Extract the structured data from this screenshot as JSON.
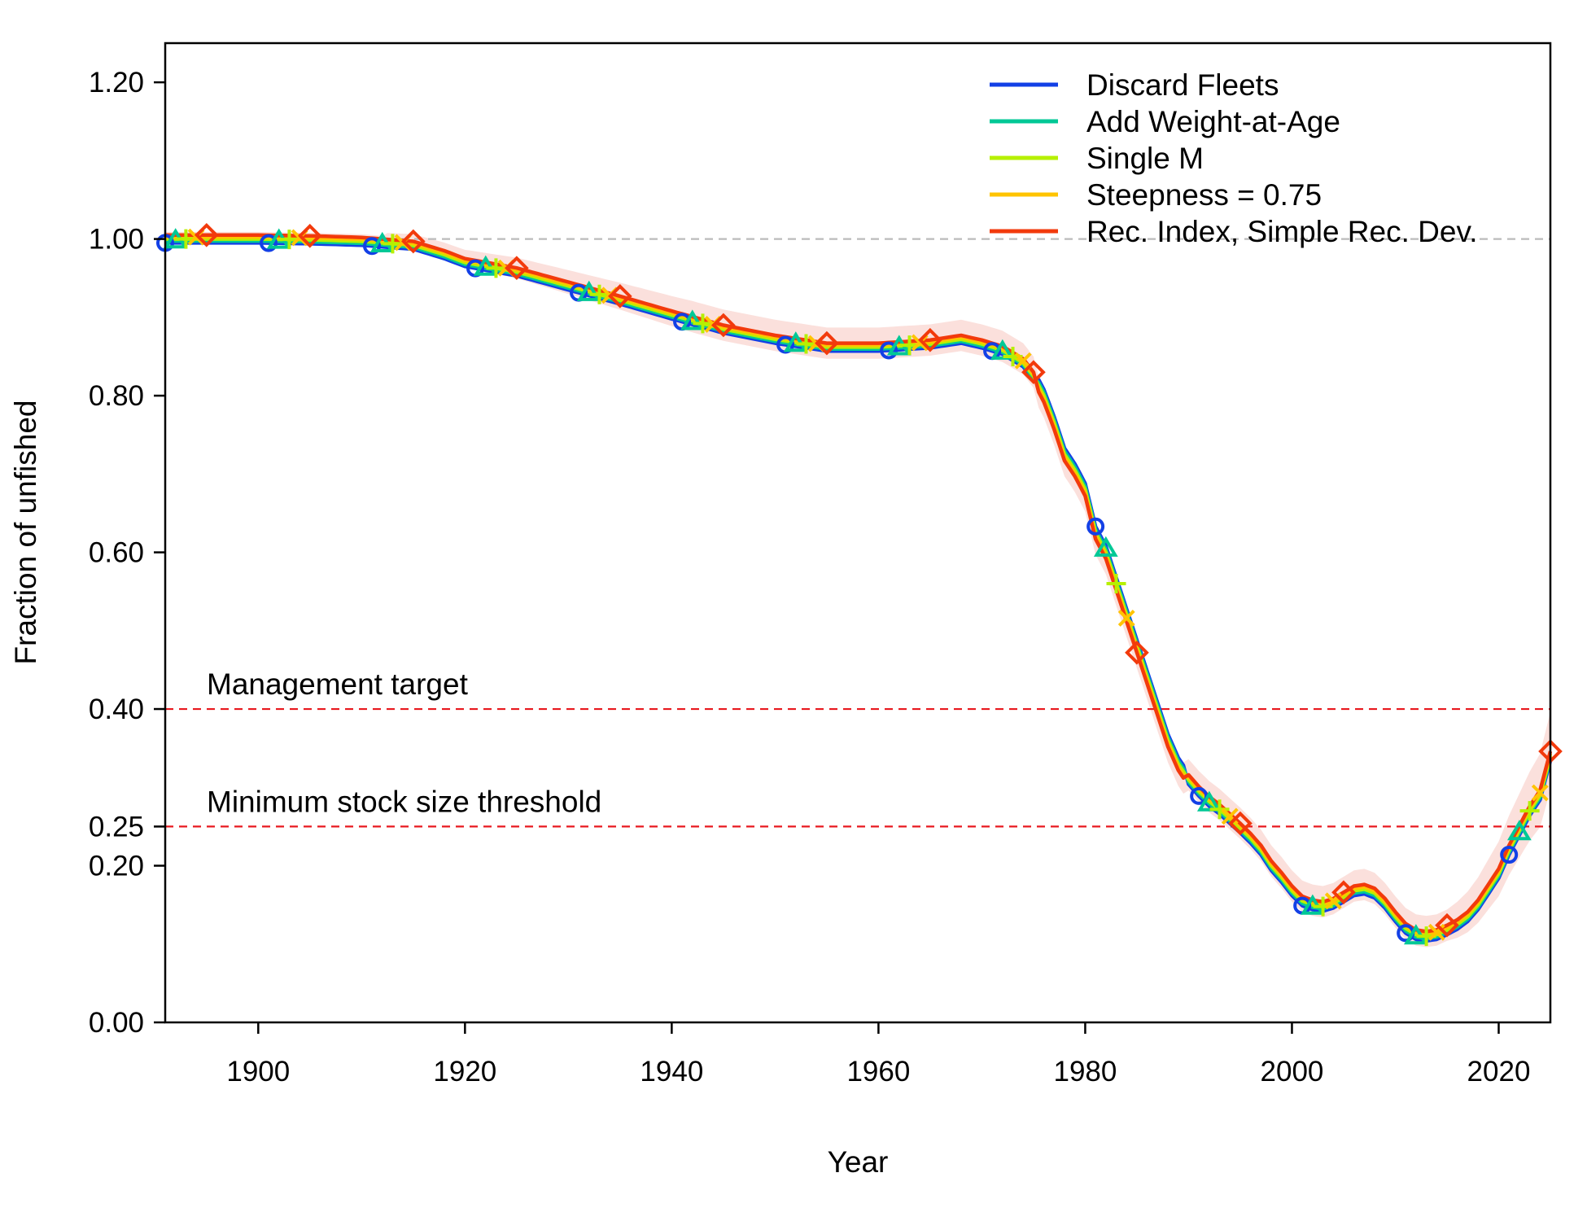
{
  "chart_data": {
    "type": "line",
    "xlabel": "Year",
    "ylabel": "Fraction of unfished",
    "xlim": [
      1891,
      2025
    ],
    "ylim": [
      0,
      1.25
    ],
    "x_ticks": [
      1900,
      1920,
      1940,
      1960,
      1980,
      2000,
      2020
    ],
    "y_ticks": [
      0.0,
      0.2,
      0.25,
      0.4,
      0.6,
      0.8,
      1.0,
      1.2
    ],
    "y_tick_labels": [
      "0.00",
      "0.20",
      "0.25",
      "0.40",
      "0.60",
      "0.80",
      "1.00",
      "1.20"
    ],
    "grid": false,
    "legend_position": "top-right",
    "reference_lines": [
      {
        "y": 1.0,
        "color": "#bbbbbb",
        "style": "dashed",
        "label": ""
      },
      {
        "y": 0.4,
        "color": "#e8191f",
        "style": "dashed",
        "label": "Management target"
      },
      {
        "y": 0.25,
        "color": "#e8191f",
        "style": "dashed",
        "label": "Minimum stock size threshold"
      }
    ],
    "base_series": {
      "x": [
        1891,
        1895,
        1900,
        1905,
        1910,
        1915,
        1918,
        1920,
        1925,
        1930,
        1935,
        1940,
        1945,
        1950,
        1955,
        1960,
        1965,
        1968,
        1970,
        1972,
        1974,
        1975,
        1976,
        1977,
        1978,
        1979,
        1980,
        1981,
        1982,
        1983,
        1984,
        1985,
        1986,
        1987,
        1988,
        1989,
        1990,
        1991,
        1992,
        1993,
        1994,
        1995,
        1996,
        1997,
        1998,
        1999,
        2000,
        2001,
        2002,
        2003,
        2004,
        2005,
        2006,
        2007,
        2008,
        2009,
        2010,
        2011,
        2012,
        2013,
        2014,
        2015,
        2016,
        2017,
        2018,
        2019,
        2020,
        2021,
        2022,
        2023,
        2024,
        2025
      ],
      "y": [
        1.0,
        1.0,
        1.0,
        0.999,
        0.997,
        0.992,
        0.98,
        0.97,
        0.958,
        0.94,
        0.922,
        0.903,
        0.885,
        0.872,
        0.862,
        0.862,
        0.866,
        0.872,
        0.866,
        0.858,
        0.842,
        0.825,
        0.8,
        0.765,
        0.725,
        0.705,
        0.68,
        0.625,
        0.6,
        0.56,
        0.52,
        0.48,
        0.44,
        0.4,
        0.36,
        0.33,
        0.31,
        0.295,
        0.282,
        0.272,
        0.26,
        0.248,
        0.235,
        0.22,
        0.2,
        0.185,
        0.168,
        0.155,
        0.15,
        0.148,
        0.152,
        0.16,
        0.168,
        0.17,
        0.165,
        0.152,
        0.135,
        0.12,
        0.112,
        0.11,
        0.112,
        0.118,
        0.125,
        0.135,
        0.15,
        0.17,
        0.19,
        0.22,
        0.245,
        0.27,
        0.29,
        0.34
      ]
    },
    "uncertainty_band": {
      "series": "Rec. Index, Simple Rec. Dev.",
      "color": "#fbe0dc"
    },
    "series": [
      {
        "name": "Discard Fleets",
        "color": "#1340e6",
        "marker": "circle",
        "marker_years": [
          1891,
          1901,
          1911,
          1921,
          1931,
          1941,
          1951,
          1961,
          1971,
          1981,
          1991,
          2001,
          2011,
          2021
        ]
      },
      {
        "name": "Add Weight-at-Age",
        "color": "#00c896",
        "marker": "triangle",
        "marker_years": [
          1892,
          1902,
          1912,
          1922,
          1932,
          1942,
          1952,
          1962,
          1972,
          1982,
          1992,
          2002,
          2012,
          2022
        ]
      },
      {
        "name": "Single M",
        "color": "#b6f000",
        "marker": "plus",
        "marker_years": [
          1893,
          1903,
          1913,
          1923,
          1933,
          1943,
          1953,
          1963,
          1973,
          1983,
          1993,
          2003,
          2013,
          2023
        ]
      },
      {
        "name": "Steepness = 0.75",
        "color": "#ffc400",
        "marker": "cross",
        "marker_years": [
          1894,
          1904,
          1914,
          1924,
          1934,
          1944,
          1954,
          1964,
          1974,
          1984,
          1994,
          2004,
          2014,
          2024
        ]
      },
      {
        "name": "Rec. Index, Simple Rec. Dev.",
        "color": "#f23a0c",
        "marker": "diamond",
        "marker_years": [
          1895,
          1905,
          1915,
          1925,
          1935,
          1945,
          1955,
          1965,
          1975,
          1985,
          1995,
          2005,
          2015,
          2025
        ]
      }
    ]
  }
}
